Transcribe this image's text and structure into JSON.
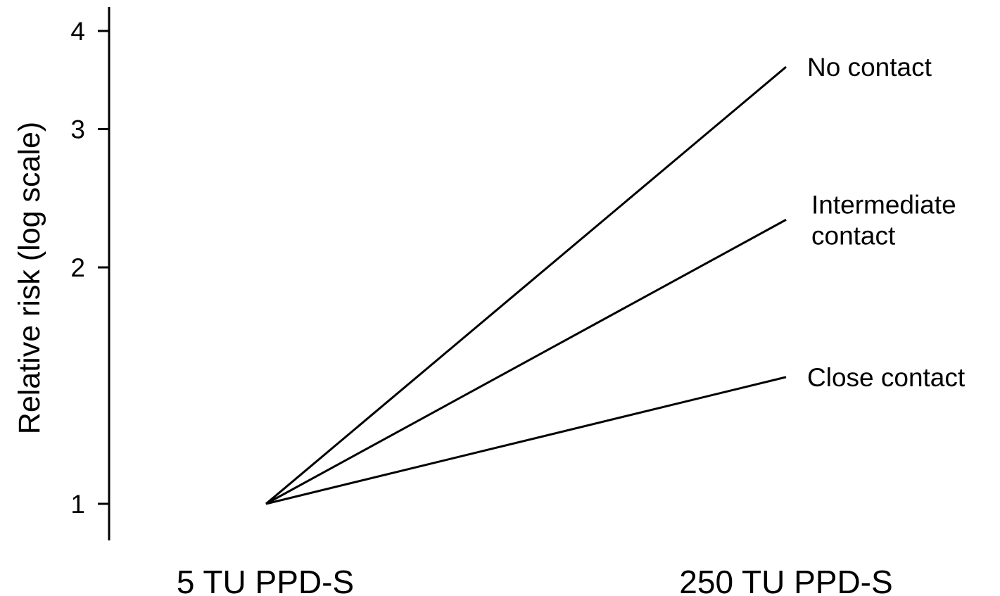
{
  "chart_data": {
    "type": "line",
    "title": "",
    "xlabel": "",
    "ylabel": "Relative risk (log scale)",
    "yscale": "log",
    "ylim": [
      1,
      4
    ],
    "yticks": [
      1,
      2,
      3,
      4
    ],
    "ytick_labels": [
      "1",
      "2",
      "3",
      "4"
    ],
    "categories": [
      "5 TU PPD-S",
      "250 TU PPD-S"
    ],
    "grid": false,
    "legend": "none",
    "series": [
      {
        "name": "No contact",
        "values": [
          1,
          3.6
        ]
      },
      {
        "name": "Intermediate\ncontact",
        "values": [
          1,
          2.3
        ]
      },
      {
        "name": "Close contact",
        "values": [
          1,
          1.45
        ]
      }
    ],
    "colors": {
      "line": "#000000",
      "background": "#ffffff"
    }
  }
}
